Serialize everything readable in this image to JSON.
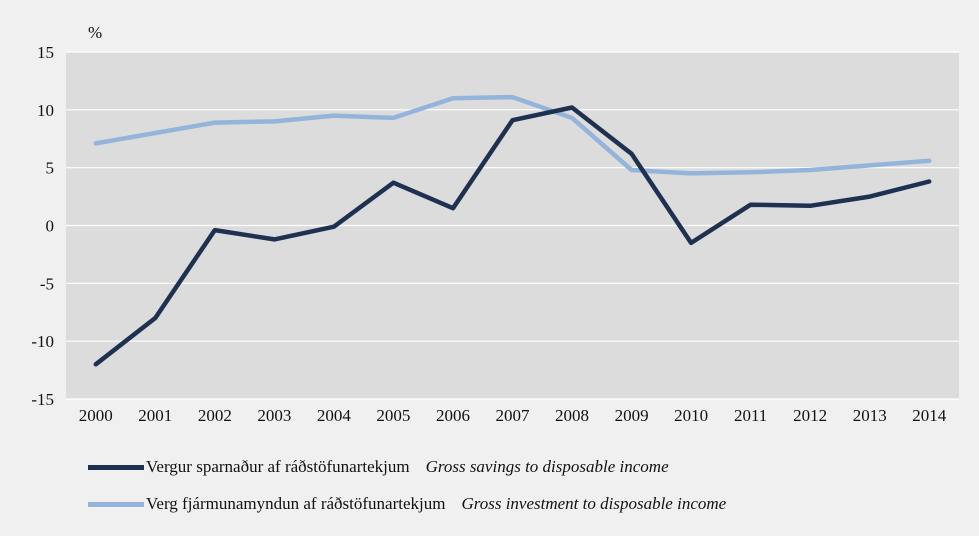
{
  "chart_data": {
    "type": "line",
    "ylabel": "%",
    "ylim": [
      -15,
      15
    ],
    "yticks": [
      15,
      10,
      5,
      0,
      -5,
      -10,
      -15
    ],
    "grid": true,
    "legend_position": "bottom",
    "x": [
      "2000",
      "2001",
      "2002",
      "2003",
      "2004",
      "2005",
      "2006",
      "2007",
      "2008",
      "2009",
      "2010",
      "2011",
      "2012",
      "2013",
      "2014"
    ],
    "series": [
      {
        "name": "Vergur sparnaður af ráðstöfunartekjum",
        "name_en": "Gross savings to disposable income",
        "color": "#1e3150",
        "values": [
          -12.0,
          -8.0,
          -0.4,
          -1.2,
          -0.1,
          3.7,
          1.5,
          9.1,
          10.2,
          6.2,
          -1.5,
          1.8,
          1.7,
          2.5,
          3.8
        ]
      },
      {
        "name": "Verg fjármunamyndun af ráðstöfunartekjum",
        "name_en": "Gross investment to disposable income",
        "color": "#94b4dc",
        "values": [
          7.1,
          8.0,
          8.9,
          9.0,
          9.5,
          9.3,
          11.0,
          11.1,
          9.3,
          4.8,
          4.5,
          4.6,
          4.8,
          5.2,
          5.6
        ]
      }
    ]
  }
}
